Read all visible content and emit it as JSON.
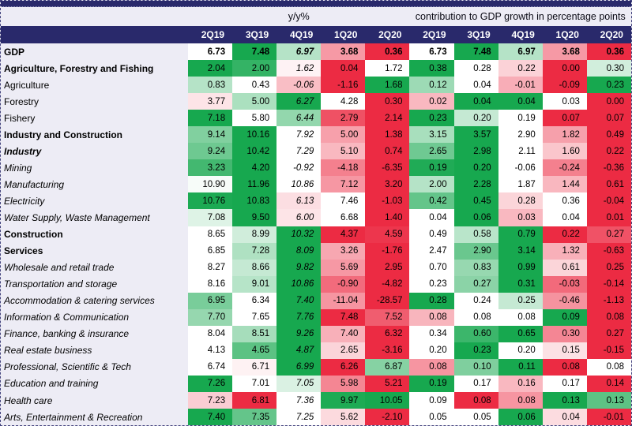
{
  "colors": {
    "header_bg": "#29296B",
    "header_text": "#FFFFFF",
    "page_bg": "#EDECF5",
    "border": "#44447E",
    "scale_red": "#EC2B43",
    "scale_mid": "#FFFFFF",
    "scale_green": "#17A84F"
  },
  "chart_data": {
    "type": "heatmap",
    "value_format": "2-decimals",
    "legend": "row-wise 3-color scale: min=red, median=white, max=green",
    "column_groups": [
      {
        "label": "y/y%",
        "columns": [
          "2Q19",
          "3Q19",
          "4Q19",
          "1Q20",
          "2Q20"
        ]
      },
      {
        "label": "contribution to GDP growth in percentage points",
        "columns": [
          "2Q19",
          "3Q19",
          "4Q19",
          "1Q20",
          "2Q20"
        ]
      }
    ],
    "rows": [
      {
        "label": "GDP",
        "style": "bold",
        "values_bold": true,
        "yoy": [
          6.73,
          7.48,
          6.97,
          3.68,
          0.36
        ],
        "contribution": [
          6.73,
          7.48,
          6.97,
          3.68,
          0.36
        ]
      },
      {
        "label": "Agriculture, Forestry and Fishing",
        "style": "bold",
        "yoy": [
          2.04,
          2.0,
          1.62,
          0.04,
          1.72
        ],
        "contribution": [
          0.38,
          0.28,
          0.22,
          0.0,
          0.3
        ]
      },
      {
        "label": "Agriculture",
        "style": "regular",
        "yoy": [
          0.83,
          0.43,
          -0.06,
          -1.16,
          1.68
        ],
        "contribution": [
          0.12,
          0.04,
          -0.01,
          -0.09,
          0.23
        ]
      },
      {
        "label": "Forestry",
        "style": "regular",
        "yoy": [
          3.77,
          5.0,
          6.27,
          4.28,
          0.3
        ],
        "contribution": [
          0.02,
          0.04,
          0.04,
          0.03,
          0.0
        ]
      },
      {
        "label": "Fishery",
        "style": "regular",
        "yoy": [
          7.18,
          5.8,
          6.44,
          2.79,
          2.14
        ],
        "contribution": [
          0.23,
          0.2,
          0.19,
          0.07,
          0.07
        ]
      },
      {
        "label": "Industry and Construction",
        "style": "bold",
        "yoy": [
          9.14,
          10.16,
          7.92,
          5.0,
          1.38
        ],
        "contribution": [
          3.15,
          3.57,
          2.9,
          1.82,
          0.49
        ]
      },
      {
        "label": "Industry",
        "style": "bold-italic",
        "yoy": [
          9.24,
          10.42,
          7.29,
          5.1,
          0.74
        ],
        "contribution": [
          2.65,
          2.98,
          2.11,
          1.6,
          0.22
        ]
      },
      {
        "label": "Mining",
        "style": "italic",
        "yoy": [
          3.23,
          4.2,
          -0.92,
          -4.18,
          -6.35
        ],
        "contribution": [
          0.19,
          0.2,
          -0.06,
          -0.24,
          -0.36
        ]
      },
      {
        "label": "Manufacturing",
        "style": "italic",
        "yoy": [
          10.9,
          11.96,
          10.86,
          7.12,
          3.2
        ],
        "contribution": [
          2.0,
          2.28,
          1.87,
          1.44,
          0.61
        ]
      },
      {
        "label": "Electricity",
        "style": "italic",
        "yoy": [
          10.76,
          10.83,
          6.13,
          7.46,
          -1.03
        ],
        "contribution": [
          0.42,
          0.45,
          0.28,
          0.36,
          -0.04
        ]
      },
      {
        "label": "Water Supply, Waste Management",
        "style": "italic",
        "yoy": [
          7.08,
          9.5,
          6.0,
          6.68,
          1.4
        ],
        "contribution": [
          0.04,
          0.06,
          0.03,
          0.04,
          0.01
        ]
      },
      {
        "label": "Construction",
        "style": "bold",
        "yoy": [
          8.65,
          8.99,
          10.32,
          4.37,
          4.59
        ],
        "contribution": [
          0.49,
          0.58,
          0.79,
          0.22,
          0.27
        ]
      },
      {
        "label": "Services",
        "style": "bold",
        "yoy": [
          6.85,
          7.28,
          8.09,
          3.26,
          -1.76
        ],
        "contribution": [
          2.47,
          2.9,
          3.14,
          1.32,
          -0.63
        ]
      },
      {
        "label": "Wholesale and retail trade",
        "style": "italic",
        "yoy": [
          8.27,
          8.66,
          9.82,
          5.69,
          2.95
        ],
        "contribution": [
          0.7,
          0.83,
          0.99,
          0.61,
          0.25
        ]
      },
      {
        "label": "Transportation and storage",
        "style": "italic",
        "yoy": [
          8.16,
          9.01,
          10.86,
          -0.9,
          -4.82
        ],
        "contribution": [
          0.23,
          0.27,
          0.31,
          -0.03,
          -0.14
        ]
      },
      {
        "label": "Accommodation & catering services",
        "style": "italic",
        "yoy": [
          6.95,
          6.34,
          7.4,
          -11.04,
          -28.57
        ],
        "contribution": [
          0.28,
          0.24,
          0.25,
          -0.46,
          -1.13
        ]
      },
      {
        "label": "Information & Communication",
        "style": "italic",
        "yoy": [
          7.7,
          7.65,
          7.76,
          7.48,
          7.52
        ],
        "contribution": [
          0.08,
          0.08,
          0.08,
          0.09,
          0.08
        ],
        "contribution_tint": [
          -0.35,
          0,
          0,
          1,
          -1
        ]
      },
      {
        "label": "Finance, banking & insurance",
        "style": "italic",
        "yoy": [
          8.04,
          8.51,
          9.26,
          7.4,
          6.32
        ],
        "contribution": [
          0.34,
          0.6,
          0.65,
          0.3,
          0.27
        ]
      },
      {
        "label": "Real estate business",
        "style": "italic",
        "yoy": [
          4.13,
          4.65,
          4.87,
          2.65,
          -3.16
        ],
        "contribution": [
          0.2,
          0.23,
          0.2,
          0.15,
          -0.15
        ]
      },
      {
        "label": "Professional, Scientific & Tech",
        "style": "italic",
        "yoy": [
          6.74,
          6.71,
          6.99,
          6.26,
          6.87
        ],
        "contribution": [
          0.08,
          0.1,
          0.11,
          0.08,
          0.08
        ],
        "contribution_tint": [
          -0.5,
          0.55,
          1,
          -1,
          0
        ]
      },
      {
        "label": "Education and training",
        "style": "italic",
        "yoy": [
          7.26,
          7.01,
          7.05,
          5.98,
          5.21
        ],
        "contribution": [
          0.19,
          0.17,
          0.16,
          0.17,
          0.14
        ]
      },
      {
        "label": "Health care",
        "style": "italic",
        "yoy": [
          7.23,
          6.81,
          7.36,
          9.97,
          10.05
        ],
        "contribution": [
          0.09,
          0.08,
          0.08,
          0.13,
          0.13
        ],
        "contribution_tint": [
          0,
          -1,
          -0.5,
          1,
          0.7
        ]
      },
      {
        "label": "Arts, Entertainment & Recreation",
        "style": "italic",
        "yoy": [
          7.4,
          7.35,
          7.25,
          5.62,
          -2.1
        ],
        "contribution": [
          0.05,
          0.05,
          0.06,
          0.04,
          -0.01
        ]
      }
    ]
  }
}
